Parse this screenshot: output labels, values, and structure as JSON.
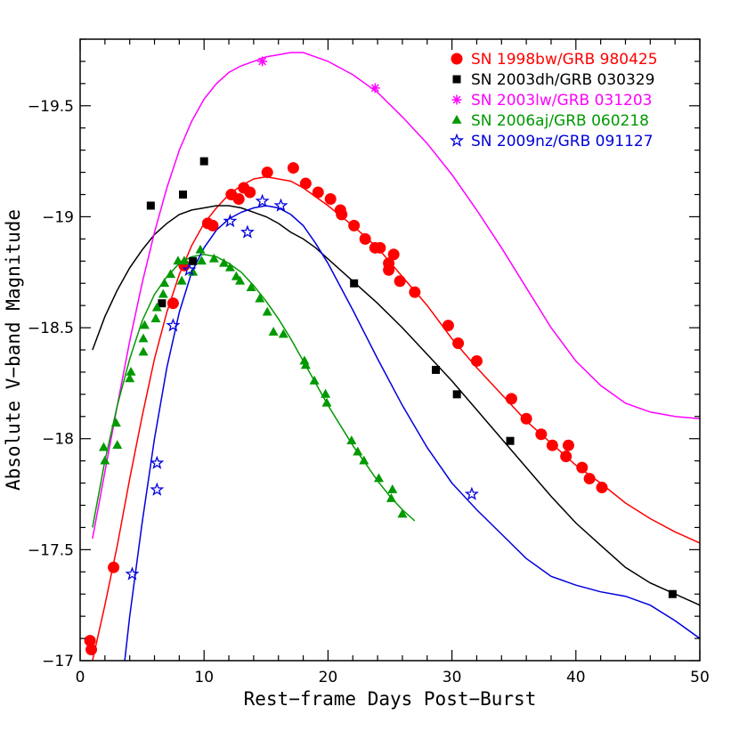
{
  "chart_data": {
    "type": "scatter",
    "title": "",
    "xlabel": "Rest−frame Days Post−Burst",
    "ylabel": "Absolute V−band Magnitude",
    "xlim": [
      0,
      50
    ],
    "ylim": [
      -17,
      -19.8
    ],
    "y_inverted": true,
    "legend_position": "top-right",
    "x_ticks": [
      0,
      10,
      20,
      30,
      40,
      50
    ],
    "x_tick_labels": [
      "0",
      "10",
      "20",
      "30",
      "40",
      "50"
    ],
    "y_ticks": [
      -19.5,
      -19,
      -18.5,
      -18,
      -17.5,
      -17
    ],
    "y_tick_labels": [
      "−19.5",
      "−19",
      "−18.5",
      "−18",
      "−17.5",
      "−17"
    ],
    "series": [
      {
        "name": "SN 1998bw/GRB 980425",
        "color": "#ff0000",
        "marker": "circle",
        "points": [
          [
            0.8,
            -17.09
          ],
          [
            0.9,
            -17.05
          ],
          [
            2.7,
            -17.42
          ],
          [
            7.5,
            -18.61
          ],
          [
            8.4,
            -18.78
          ],
          [
            10.3,
            -18.97
          ],
          [
            10.7,
            -18.96
          ],
          [
            12.2,
            -19.1
          ],
          [
            12.8,
            -19.08
          ],
          [
            13.2,
            -19.13
          ],
          [
            13.7,
            -19.11
          ],
          [
            15.1,
            -19.2
          ],
          [
            17.2,
            -19.22
          ],
          [
            18.2,
            -19.15
          ],
          [
            19.2,
            -19.11
          ],
          [
            20.2,
            -19.08
          ],
          [
            21.0,
            -19.03
          ],
          [
            21.1,
            -19.01
          ],
          [
            22.1,
            -18.96
          ],
          [
            23.0,
            -18.9
          ],
          [
            23.8,
            -18.86
          ],
          [
            24.2,
            -18.86
          ],
          [
            24.9,
            -18.79
          ],
          [
            24.9,
            -18.76
          ],
          [
            25.3,
            -18.83
          ],
          [
            25.8,
            -18.71
          ],
          [
            27.0,
            -18.66
          ],
          [
            29.7,
            -18.51
          ],
          [
            30.5,
            -18.43
          ],
          [
            32.0,
            -18.35
          ],
          [
            34.8,
            -18.18
          ],
          [
            36.0,
            -18.09
          ],
          [
            37.2,
            -18.02
          ],
          [
            38.1,
            -17.97
          ],
          [
            39.2,
            -17.92
          ],
          [
            39.4,
            -17.97
          ],
          [
            40.5,
            -17.87
          ],
          [
            41.1,
            -17.82
          ],
          [
            42.1,
            -17.78
          ]
        ],
        "curve": [
          [
            1,
            -17.0
          ],
          [
            2,
            -17.25
          ],
          [
            3,
            -17.52
          ],
          [
            4,
            -17.82
          ],
          [
            5,
            -18.1
          ],
          [
            6,
            -18.36
          ],
          [
            7,
            -18.57
          ],
          [
            8,
            -18.74
          ],
          [
            9,
            -18.87
          ],
          [
            10,
            -18.97
          ],
          [
            11,
            -19.04
          ],
          [
            12,
            -19.1
          ],
          [
            13,
            -19.14
          ],
          [
            14,
            -19.17
          ],
          [
            15,
            -19.18
          ],
          [
            16,
            -19.17
          ],
          [
            17,
            -19.16
          ],
          [
            18,
            -19.13
          ],
          [
            19,
            -19.09
          ],
          [
            20,
            -19.05
          ],
          [
            22,
            -18.96
          ],
          [
            24,
            -18.86
          ],
          [
            26,
            -18.73
          ],
          [
            28,
            -18.6
          ],
          [
            30,
            -18.45
          ],
          [
            32,
            -18.32
          ],
          [
            34,
            -18.2
          ],
          [
            36,
            -18.08
          ],
          [
            38,
            -17.98
          ],
          [
            40,
            -17.88
          ],
          [
            42,
            -17.8
          ],
          [
            44,
            -17.71
          ],
          [
            46,
            -17.64
          ],
          [
            48,
            -17.58
          ],
          [
            50,
            -17.53
          ]
        ]
      },
      {
        "name": "SN 2003dh/GRB 030329",
        "color": "#000000",
        "marker": "square",
        "points": [
          [
            5.7,
            -19.05
          ],
          [
            6.6,
            -18.61
          ],
          [
            8.3,
            -19.1
          ],
          [
            9.1,
            -18.8
          ],
          [
            10.0,
            -19.25
          ],
          [
            22.1,
            -18.7
          ],
          [
            28.7,
            -18.31
          ],
          [
            30.4,
            -18.2
          ],
          [
            34.7,
            -17.99
          ],
          [
            47.8,
            -17.3
          ]
        ],
        "curve": [
          [
            1,
            -18.4
          ],
          [
            2,
            -18.55
          ],
          [
            3,
            -18.67
          ],
          [
            4,
            -18.77
          ],
          [
            5,
            -18.85
          ],
          [
            6,
            -18.92
          ],
          [
            7,
            -18.97
          ],
          [
            8,
            -19.01
          ],
          [
            9,
            -19.03
          ],
          [
            10,
            -19.04
          ],
          [
            11,
            -19.05
          ],
          [
            12,
            -19.05
          ],
          [
            13,
            -19.04
          ],
          [
            14,
            -19.02
          ],
          [
            15,
            -19.0
          ],
          [
            16,
            -18.97
          ],
          [
            17,
            -18.93
          ],
          [
            18,
            -18.9
          ],
          [
            19,
            -18.86
          ],
          [
            20,
            -18.81
          ],
          [
            22,
            -18.71
          ],
          [
            24,
            -18.61
          ],
          [
            26,
            -18.5
          ],
          [
            28,
            -18.38
          ],
          [
            30,
            -18.26
          ],
          [
            32,
            -18.13
          ],
          [
            34,
            -18.0
          ],
          [
            36,
            -17.87
          ],
          [
            38,
            -17.74
          ],
          [
            40,
            -17.62
          ],
          [
            42,
            -17.52
          ],
          [
            44,
            -17.42
          ],
          [
            46,
            -17.35
          ],
          [
            48,
            -17.3
          ],
          [
            50,
            -17.25
          ]
        ]
      },
      {
        "name": "SN 2003lw/GRB 031203",
        "color": "#ff00ff",
        "marker": "asterisk",
        "points": [
          [
            14.7,
            -19.7
          ],
          [
            23.8,
            -19.58
          ]
        ],
        "curve": [
          [
            1,
            -17.55
          ],
          [
            2,
            -17.85
          ],
          [
            3,
            -18.15
          ],
          [
            4,
            -18.44
          ],
          [
            5,
            -18.7
          ],
          [
            6,
            -18.93
          ],
          [
            7,
            -19.13
          ],
          [
            8,
            -19.3
          ],
          [
            9,
            -19.43
          ],
          [
            10,
            -19.53
          ],
          [
            11,
            -19.6
          ],
          [
            12,
            -19.65
          ],
          [
            13,
            -19.68
          ],
          [
            14,
            -19.7
          ],
          [
            15,
            -19.72
          ],
          [
            16,
            -19.73
          ],
          [
            17,
            -19.74
          ],
          [
            18,
            -19.74
          ],
          [
            19,
            -19.72
          ],
          [
            20,
            -19.7
          ],
          [
            22,
            -19.64
          ],
          [
            24,
            -19.56
          ],
          [
            26,
            -19.45
          ],
          [
            28,
            -19.33
          ],
          [
            30,
            -19.19
          ],
          [
            32,
            -19.03
          ],
          [
            34,
            -18.86
          ],
          [
            36,
            -18.68
          ],
          [
            38,
            -18.5
          ],
          [
            40,
            -18.35
          ],
          [
            42,
            -18.24
          ],
          [
            44,
            -18.16
          ],
          [
            46,
            -18.12
          ],
          [
            48,
            -18.1
          ],
          [
            50,
            -18.09
          ]
        ]
      },
      {
        "name": "SN 2006aj/GRB 060218",
        "color": "#009900",
        "marker": "triangle",
        "points": [
          [
            1.9,
            -17.96
          ],
          [
            2.0,
            -17.9
          ],
          [
            2.9,
            -18.07
          ],
          [
            3.0,
            -17.97
          ],
          [
            4.0,
            -18.27
          ],
          [
            4.1,
            -18.3
          ],
          [
            5.1,
            -18.45
          ],
          [
            5.1,
            -18.39
          ],
          [
            5.2,
            -18.51
          ],
          [
            6.1,
            -18.54
          ],
          [
            6.2,
            -18.59
          ],
          [
            6.7,
            -18.65
          ],
          [
            6.8,
            -18.7
          ],
          [
            7.3,
            -18.74
          ],
          [
            7.9,
            -18.8
          ],
          [
            8.2,
            -18.71
          ],
          [
            8.4,
            -18.8
          ],
          [
            9.1,
            -18.75
          ],
          [
            9.7,
            -18.85
          ],
          [
            9.8,
            -18.8
          ],
          [
            10.8,
            -18.81
          ],
          [
            11.6,
            -18.79
          ],
          [
            12.1,
            -18.77
          ],
          [
            12.6,
            -18.73
          ],
          [
            12.9,
            -18.71
          ],
          [
            13.8,
            -18.68
          ],
          [
            14.5,
            -18.63
          ],
          [
            15.1,
            -18.57
          ],
          [
            15.6,
            -18.48
          ],
          [
            16.4,
            -18.47
          ],
          [
            18.1,
            -18.35
          ],
          [
            18.2,
            -18.33
          ],
          [
            18.9,
            -18.26
          ],
          [
            19.8,
            -18.2
          ],
          [
            19.9,
            -18.16
          ],
          [
            21.9,
            -17.99
          ],
          [
            22.4,
            -17.94
          ],
          [
            22.9,
            -17.9
          ],
          [
            24.1,
            -17.82
          ],
          [
            25.1,
            -17.73
          ],
          [
            25.2,
            -17.77
          ],
          [
            26.0,
            -17.66
          ]
        ],
        "curve": [
          [
            1,
            -17.6
          ],
          [
            2,
            -17.9
          ],
          [
            3,
            -18.15
          ],
          [
            4,
            -18.36
          ],
          [
            5,
            -18.53
          ],
          [
            6,
            -18.65
          ],
          [
            7,
            -18.73
          ],
          [
            8,
            -18.79
          ],
          [
            9,
            -18.82
          ],
          [
            10,
            -18.83
          ],
          [
            11,
            -18.82
          ],
          [
            12,
            -18.79
          ],
          [
            13,
            -18.75
          ],
          [
            14,
            -18.69
          ],
          [
            15,
            -18.62
          ],
          [
            16,
            -18.54
          ],
          [
            17,
            -18.45
          ],
          [
            18,
            -18.35
          ],
          [
            19,
            -18.25
          ],
          [
            20,
            -18.15
          ],
          [
            21,
            -18.06
          ],
          [
            22,
            -17.97
          ],
          [
            23,
            -17.89
          ],
          [
            24,
            -17.81
          ],
          [
            25,
            -17.74
          ],
          [
            26,
            -17.68
          ],
          [
            27,
            -17.63
          ]
        ]
      },
      {
        "name": "SN 2009nz/GRB 091127",
        "color": "#0000dd",
        "marker": "star",
        "points": [
          [
            4.2,
            -17.39
          ],
          [
            6.2,
            -17.77
          ],
          [
            6.2,
            -17.89
          ],
          [
            7.5,
            -18.51
          ],
          [
            8.8,
            -18.76
          ],
          [
            12.1,
            -18.98
          ],
          [
            13.5,
            -18.93
          ],
          [
            14.7,
            -19.07
          ],
          [
            16.2,
            -19.05
          ],
          [
            31.6,
            -17.75
          ]
        ],
        "curve": [
          [
            3.6,
            -17.0
          ],
          [
            4,
            -17.2
          ],
          [
            5,
            -17.62
          ],
          [
            6,
            -18.0
          ],
          [
            7,
            -18.32
          ],
          [
            8,
            -18.57
          ],
          [
            9,
            -18.75
          ],
          [
            10,
            -18.86
          ],
          [
            11,
            -18.94
          ],
          [
            12,
            -18.99
          ],
          [
            13,
            -19.02
          ],
          [
            14,
            -19.04
          ],
          [
            15,
            -19.05
          ],
          [
            16,
            -19.04
          ],
          [
            17,
            -19.01
          ],
          [
            18,
            -18.96
          ],
          [
            19,
            -18.88
          ],
          [
            20,
            -18.79
          ],
          [
            22,
            -18.58
          ],
          [
            24,
            -18.36
          ],
          [
            26,
            -18.15
          ],
          [
            28,
            -17.96
          ],
          [
            30,
            -17.8
          ],
          [
            32,
            -17.68
          ],
          [
            34,
            -17.57
          ],
          [
            36,
            -17.46
          ],
          [
            38,
            -17.38
          ],
          [
            40,
            -17.34
          ],
          [
            42,
            -17.31
          ],
          [
            44,
            -17.29
          ],
          [
            46,
            -17.25
          ],
          [
            48,
            -17.18
          ],
          [
            50,
            -17.1
          ]
        ]
      }
    ]
  }
}
